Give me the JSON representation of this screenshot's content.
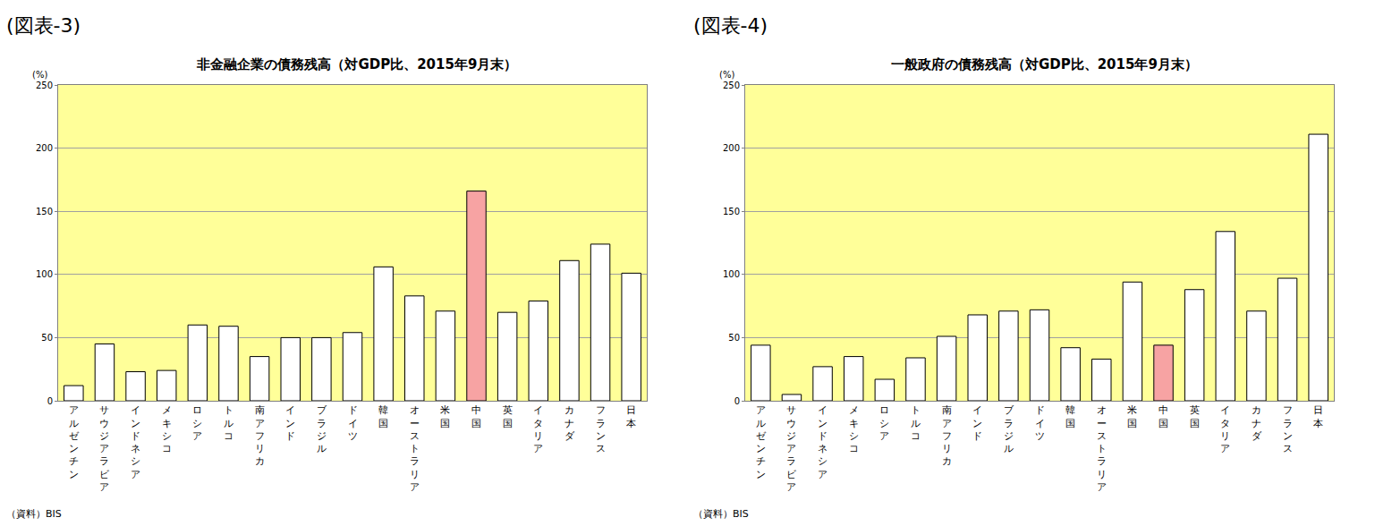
{
  "chart_data": [
    {
      "type": "bar",
      "figure_label": "(図表-3)",
      "title": "非金融企業の債務残高（対GDP比、2015年9月末）",
      "y_label": "(%)",
      "source": "（資料）BIS",
      "categories": [
        "アルゼンチン",
        "サウジアラビア",
        "インドネシア",
        "メキシコ",
        "ロシア",
        "トルコ",
        "南アフリカ",
        "インド",
        "ブラジル",
        "ドイツ",
        "韓国",
        "オーストラリア",
        "米国",
        "中国",
        "英国",
        "イタリア",
        "カナダ",
        "フランス",
        "日本"
      ],
      "values": [
        12,
        45,
        23,
        24,
        60,
        59,
        35,
        50,
        50,
        54,
        106,
        83,
        71,
        166,
        70,
        79,
        111,
        124,
        101
      ],
      "colors": [
        "#ffffff",
        "#ffffff",
        "#ffffff",
        "#ffffff",
        "#ffffff",
        "#ffffff",
        "#ffffff",
        "#ffffff",
        "#ffffff",
        "#ffffff",
        "#ffffff",
        "#ffffff",
        "#ffffff",
        "#f7a3a3",
        "#ffffff",
        "#ffffff",
        "#ffffff",
        "#ffffff",
        "#ffffff"
      ],
      "ylim": [
        0,
        250
      ],
      "yticks": [
        0,
        50,
        100,
        150,
        200,
        250
      ],
      "grid": true
    },
    {
      "type": "bar",
      "figure_label": "(図表-4)",
      "title": "一般政府の債務残高（対GDP比、2015年9月末）",
      "y_label": "(%)",
      "source": "（資料）BIS",
      "categories": [
        "アルゼンチン",
        "サウジアラビア",
        "インドネシア",
        "メキシコ",
        "ロシア",
        "トルコ",
        "南アフリカ",
        "インド",
        "ブラジル",
        "ドイツ",
        "韓国",
        "オーストラリア",
        "米国",
        "中国",
        "英国",
        "イタリア",
        "カナダ",
        "フランス",
        "日本"
      ],
      "values": [
        44,
        5,
        27,
        35,
        17,
        34,
        51,
        68,
        71,
        72,
        42,
        33,
        94,
        44,
        88,
        134,
        71,
        97,
        211
      ],
      "colors": [
        "#ffffff",
        "#ffffff",
        "#ffffff",
        "#ffffff",
        "#ffffff",
        "#ffffff",
        "#ffffff",
        "#ffffff",
        "#ffffff",
        "#ffffff",
        "#ffffff",
        "#ffffff",
        "#ffffff",
        "#f7a3a3",
        "#ffffff",
        "#ffffff",
        "#ffffff",
        "#ffffff",
        "#ffffff"
      ],
      "ylim": [
        0,
        250
      ],
      "yticks": [
        0,
        50,
        100,
        150,
        200,
        250
      ],
      "grid": true
    }
  ]
}
